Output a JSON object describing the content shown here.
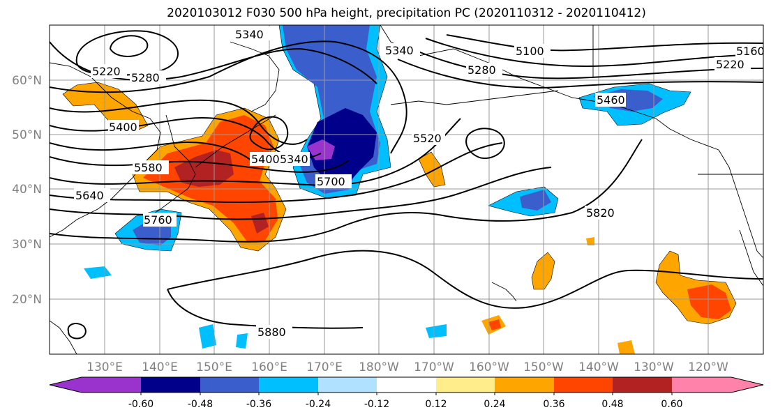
{
  "title": "2020103012 F030 500 hPa height, precipitation PC (2020110312 - 2020110412)",
  "lat_labels": [
    "60°N",
    "50°N",
    "40°N",
    "30°N",
    "20°N"
  ],
  "lon_labels": [
    "130°E",
    "140°E",
    "150°E",
    "160°E",
    "170°E",
    "180°W",
    "170°W",
    "160°W",
    "150°W",
    "140°W",
    "130°W",
    "120°W"
  ],
  "contour_labels": [
    "5340",
    "5340",
    "5100",
    "5160",
    "5220",
    "5220",
    "5280",
    "5280",
    "5400",
    "5460",
    "5520",
    "5580",
    "5640",
    "5760",
    "5400",
    "5340",
    "5700",
    "5820",
    "5880"
  ],
  "colorbar": {
    "colors": [
      "#9a32cd",
      "#00008b",
      "#3a5fcd",
      "#00bfff",
      "#b0e2ff",
      "#ffffff",
      "#ffec8b",
      "#ffa500",
      "#ff4500",
      "#b22222",
      "#ff82ab"
    ],
    "tick_labels": [
      "-0.60",
      "-0.48",
      "-0.36",
      "-0.24",
      "-0.12",
      "0.12",
      "0.24",
      "0.36",
      "0.48",
      "0.60"
    ]
  }
}
